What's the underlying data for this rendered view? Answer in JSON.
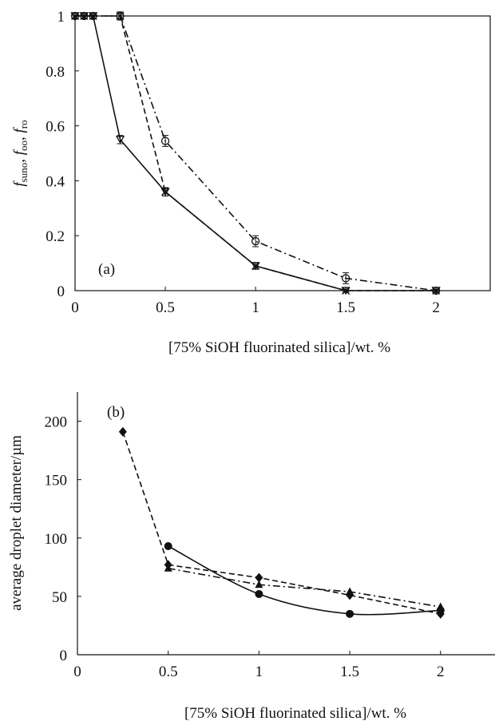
{
  "chart_data": [
    {
      "panel_label": "(a)",
      "type": "line",
      "xlabel": "[75% SiOH fluorinated silica]/wt. %",
      "ylabel": {
        "f1": "f",
        "s1": "suno",
        "sep1": ", ",
        "f2": "f",
        "s2": "oo",
        "sep2": ", ",
        "f3": "f",
        "s3": "ro"
      },
      "xlim": [
        0,
        2.3
      ],
      "ylim": [
        0,
        1
      ],
      "x_ticks": [
        0,
        0.5,
        1,
        1.5,
        2
      ],
      "x_tick_labels": [
        "0",
        "0.5",
        "1",
        "1.5",
        "2"
      ],
      "y_ticks": [
        0,
        0.2,
        0.4,
        0.6,
        0.8,
        1
      ],
      "y_tick_labels": [
        "0",
        "0.2",
        "0.4",
        "0.6",
        "0.8",
        "1"
      ],
      "grid": false,
      "series": [
        {
          "marker": "triangle-down",
          "line": "solid",
          "x": [
            0,
            0.05,
            0.1,
            0.25,
            0.5,
            1,
            1.5,
            2
          ],
          "y": [
            1,
            1,
            1,
            0.55,
            0.36,
            0.09,
            0,
            0
          ],
          "err": [
            0.01,
            0.01,
            0.01,
            0.015,
            0.015,
            0.012,
            0.005,
            0.005
          ]
        },
        {
          "marker": "x",
          "line": "dashed",
          "x": [
            0,
            0.05,
            0.1,
            0.25,
            0.5,
            1,
            1.5,
            2
          ],
          "y": [
            1,
            1,
            1,
            1,
            0.36,
            0.09,
            0,
            0
          ],
          "err": [
            0.01,
            0.01,
            0.01,
            0.01,
            0.015,
            0.012,
            0.005,
            0.005
          ]
        },
        {
          "marker": "circle-open",
          "line": "dash-dot",
          "x": [
            0,
            0.05,
            0.1,
            0.25,
            0.5,
            1,
            1.5,
            2
          ],
          "y": [
            1,
            1,
            1,
            1,
            0.545,
            0.18,
            0.045,
            0
          ],
          "err": [
            0.01,
            0.01,
            0.01,
            0.015,
            0.02,
            0.02,
            0.02,
            0.005
          ]
        }
      ]
    },
    {
      "panel_label": "(b)",
      "type": "line",
      "xlabel": "[75% SiOH fluorinated silica]/wt. %",
      "ylabel": "average droplet diameter/µm",
      "xlim": [
        0,
        2.3
      ],
      "ylim": [
        0,
        225
      ],
      "x_ticks": [
        0,
        0.5,
        1,
        1.5,
        2
      ],
      "x_tick_labels": [
        "0",
        "0.5",
        "1",
        "1.5",
        "2"
      ],
      "y_ticks": [
        0,
        50,
        100,
        150,
        200
      ],
      "y_tick_labels": [
        "0",
        "50",
        "100",
        "150",
        "200"
      ],
      "grid": false,
      "series": [
        {
          "marker": "circle",
          "line": "solid-smooth",
          "x": [
            0.5,
            1,
            1.5,
            2
          ],
          "y": [
            93,
            52,
            35,
            38
          ]
        },
        {
          "marker": "diamond",
          "line": "dashed",
          "x": [
            0.25,
            0.5,
            1,
            1.5,
            2
          ],
          "y": [
            191,
            77,
            66,
            51,
            35
          ]
        },
        {
          "marker": "triangle",
          "line": "dash-dot",
          "x": [
            0.5,
            1,
            1.5,
            2
          ],
          "y": [
            74,
            60,
            54,
            41
          ]
        }
      ]
    }
  ]
}
